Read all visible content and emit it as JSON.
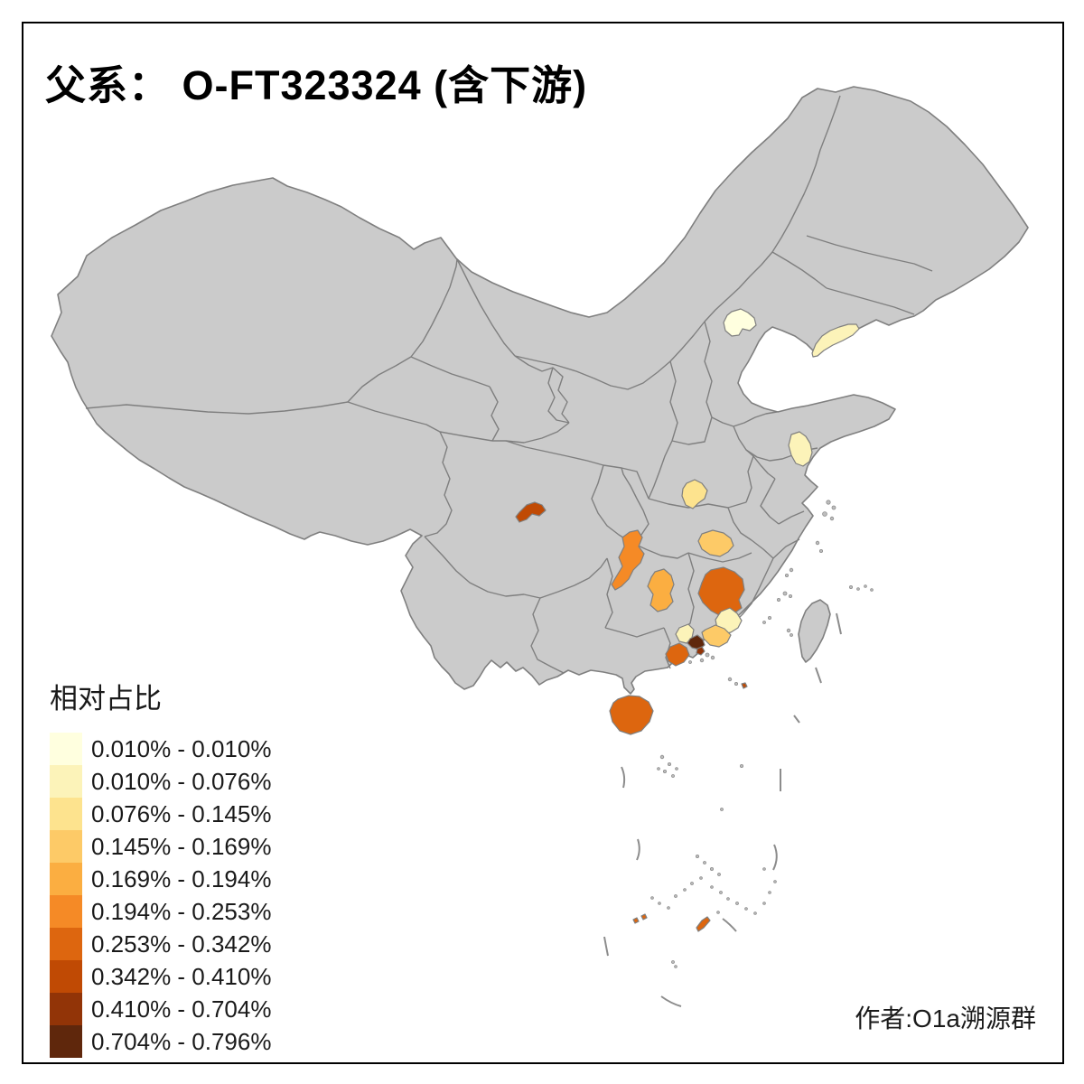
{
  "title": {
    "text": "父系： O-FT323324 (含下游)"
  },
  "legend": {
    "title": "相对占比",
    "classes": [
      {
        "label": "0.010% - 0.010%",
        "color": "#FFFFDF"
      },
      {
        "label": "0.010% - 0.076%",
        "color": "#FCF3B9"
      },
      {
        "label": "0.076% - 0.145%",
        "color": "#FDE38E"
      },
      {
        "label": "0.145% - 0.169%",
        "color": "#FDCA67"
      },
      {
        "label": "0.169% - 0.194%",
        "color": "#FBAE41"
      },
      {
        "label": "0.194% - 0.253%",
        "color": "#F58A26"
      },
      {
        "label": "0.253% - 0.342%",
        "color": "#DD660F"
      },
      {
        "label": "0.342% - 0.410%",
        "color": "#C04A04"
      },
      {
        "label": "0.410% - 0.704%",
        "color": "#923407"
      },
      {
        "label": "0.704% - 0.796%",
        "color": "#5F270C"
      }
    ]
  },
  "attribution": "作者:O1a溯源群",
  "map": {
    "land_fill": "#CBCBCB",
    "border_color": "#7F7F7F",
    "background": "#FFFFFF",
    "regions": [
      {
        "id": "beijing-area",
        "class": 1
      },
      {
        "id": "liaoning-dalian-area",
        "class": 2
      },
      {
        "id": "jiangsu-coastal-area",
        "class": 2
      },
      {
        "id": "henan-south-area",
        "class": 3
      },
      {
        "id": "hubei-wuhan-area",
        "class": 4
      },
      {
        "id": "hunan-west-area",
        "class": 6
      },
      {
        "id": "hunan-central-area",
        "class": 5
      },
      {
        "id": "jiangxi-south-area",
        "class": 7
      },
      {
        "id": "sichuan-west-area",
        "class": 8
      },
      {
        "id": "guangdong-east-area",
        "class": 2
      },
      {
        "id": "guangdong-central-area",
        "class": 4
      },
      {
        "id": "guangdong-north-area",
        "class": 2
      },
      {
        "id": "pearl-river-delta-area",
        "class": 10
      },
      {
        "id": "zhongshan-zhuhai-area",
        "class": 9
      },
      {
        "id": "guangdong-west-area",
        "class": 7
      },
      {
        "id": "hainan-area",
        "class": 7
      },
      {
        "id": "scs-island-a",
        "class": 7
      },
      {
        "id": "scs-island-b",
        "class": 7
      },
      {
        "id": "scs-island-c",
        "class": 7
      },
      {
        "id": "coastal-islet-east-guangdong",
        "class": 8
      }
    ]
  },
  "chart_data": {
    "type": "choropleth",
    "title": "父系： O-FT323324 (含下游)",
    "legend_title": "相对占比",
    "legend_position": "bottom-left",
    "breaks": [
      "0.010% - 0.010%",
      "0.010% - 0.076%",
      "0.076% - 0.145%",
      "0.145% - 0.169%",
      "0.169% - 0.194%",
      "0.194% - 0.253%",
      "0.253% - 0.342%",
      "0.342% - 0.410%",
      "0.410% - 0.704%",
      "0.704% - 0.796%"
    ],
    "regions": [
      {
        "location": "beijing-area",
        "range": "0.010% - 0.010%"
      },
      {
        "location": "liaoning-dalian-area",
        "range": "0.010% - 0.076%"
      },
      {
        "location": "jiangsu-coastal-area",
        "range": "0.010% - 0.076%"
      },
      {
        "location": "henan-south-area",
        "range": "0.076% - 0.145%"
      },
      {
        "location": "hubei-wuhan-area",
        "range": "0.145% - 0.169%"
      },
      {
        "location": "hunan-west-area",
        "range": "0.194% - 0.253%"
      },
      {
        "location": "hunan-central-area",
        "range": "0.169% - 0.194%"
      },
      {
        "location": "jiangxi-south-area",
        "range": "0.253% - 0.342%"
      },
      {
        "location": "sichuan-west-area",
        "range": "0.342% - 0.410%"
      },
      {
        "location": "guangdong-east-area",
        "range": "0.010% - 0.076%"
      },
      {
        "location": "guangdong-central-area",
        "range": "0.145% - 0.169%"
      },
      {
        "location": "guangdong-north-area",
        "range": "0.010% - 0.076%"
      },
      {
        "location": "pearl-river-delta-area",
        "range": "0.704% - 0.796%"
      },
      {
        "location": "zhongshan-zhuhai-area",
        "range": "0.410% - 0.704%"
      },
      {
        "location": "guangdong-west-area",
        "range": "0.253% - 0.342%"
      },
      {
        "location": "hainan-area",
        "range": "0.253% - 0.342%"
      },
      {
        "location": "south-china-sea-islands",
        "range": "0.253% - 0.342%"
      }
    ]
  }
}
